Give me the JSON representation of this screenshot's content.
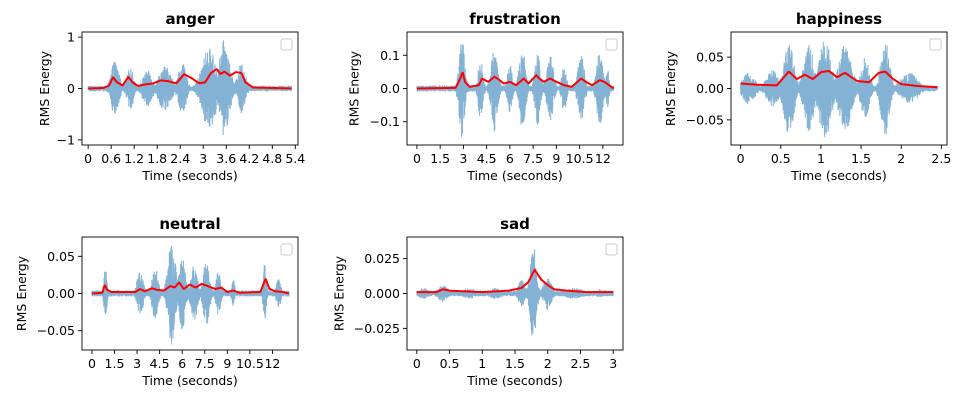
{
  "chart_data": [
    {
      "type": "line",
      "title": "anger",
      "xlabel": "Time (seconds)",
      "ylabel": "RMS Energy",
      "xlim": [
        -0.16,
        5.47
      ],
      "ylim": [
        -1.1,
        1.1
      ],
      "xticks": [
        0,
        0.6,
        1.2,
        1.8,
        2.4,
        3,
        3.6,
        4.2,
        4.8,
        5.4
      ],
      "xtick_labels": [
        "0",
        "0.6",
        "1.2",
        "1.8",
        "2.4",
        "3",
        "3.6",
        "4.2",
        "4.8",
        "5.4"
      ],
      "yticks": [
        -1,
        0,
        1
      ],
      "ytick_labels": [
        "−1",
        "0",
        "1"
      ],
      "duration": 5.3,
      "wave_peak": 0.95,
      "bursts": [
        [
          0.7,
          0.2,
          0.55
        ],
        [
          1.1,
          0.18,
          0.4
        ],
        [
          1.55,
          0.25,
          0.35
        ],
        [
          2.0,
          0.3,
          0.45
        ],
        [
          2.45,
          0.2,
          0.5
        ],
        [
          3.15,
          0.35,
          0.8
        ],
        [
          3.55,
          0.25,
          0.95
        ],
        [
          4.0,
          0.2,
          0.5
        ]
      ],
      "series": [
        {
          "name": "waveform",
          "color": "#6fa4cc"
        },
        {
          "name": "RMS",
          "color": "#ff0000",
          "x": [
            0,
            0.4,
            0.55,
            0.65,
            0.75,
            0.9,
            1.05,
            1.15,
            1.3,
            1.5,
            1.7,
            1.9,
            2.1,
            2.3,
            2.5,
            2.7,
            2.9,
            3.05,
            3.2,
            3.35,
            3.45,
            3.55,
            3.7,
            3.85,
            4.0,
            4.1,
            4.3,
            5.3
          ],
          "y": [
            0,
            0.01,
            0.06,
            0.22,
            0.12,
            0.06,
            0.23,
            0.12,
            0.05,
            0.08,
            0.1,
            0.16,
            0.14,
            0.1,
            0.28,
            0.2,
            0.1,
            0.12,
            0.3,
            0.38,
            0.28,
            0.33,
            0.25,
            0.32,
            0.3,
            0.12,
            0.02,
            0
          ]
        }
      ],
      "legend": "upper right, empty"
    },
    {
      "type": "line",
      "title": "frustration",
      "xlabel": "Time (seconds)",
      "ylabel": "RMS Energy",
      "xlim": [
        -0.64,
        13.3
      ],
      "ylim": [
        -0.17,
        0.17
      ],
      "xticks": [
        0,
        1.5,
        3,
        4.5,
        6,
        7.5,
        9,
        10.5,
        12
      ],
      "xtick_labels": [
        "0",
        "1.5",
        "3",
        "4.5",
        "6",
        "7.5",
        "9",
        "10.5",
        "12"
      ],
      "yticks": [
        -0.1,
        0,
        0.1
      ],
      "ytick_labels": [
        "−0.1",
        "0.0",
        "0.1"
      ],
      "duration": 12.7,
      "wave_peak": 0.155,
      "bursts": [
        [
          2.9,
          0.35,
          0.155
        ],
        [
          4.1,
          0.3,
          0.09
        ],
        [
          5.0,
          0.4,
          0.13
        ],
        [
          6.0,
          0.3,
          0.08
        ],
        [
          6.8,
          0.4,
          0.12
        ],
        [
          7.8,
          0.35,
          0.11
        ],
        [
          8.6,
          0.4,
          0.1
        ],
        [
          9.5,
          0.3,
          0.07
        ],
        [
          10.6,
          0.4,
          0.1
        ],
        [
          11.8,
          0.4,
          0.11
        ],
        [
          12.3,
          0.2,
          0.06
        ]
      ],
      "series": [
        {
          "name": "waveform",
          "color": "#6fa4cc"
        },
        {
          "name": "RMS",
          "color": "#ff0000",
          "x": [
            0,
            2.5,
            2.8,
            2.95,
            3.1,
            3.4,
            4.0,
            4.2,
            4.6,
            5.0,
            5.2,
            5.6,
            6.0,
            6.4,
            6.9,
            7.2,
            7.7,
            7.9,
            8.2,
            8.6,
            9.0,
            9.5,
            10.0,
            10.6,
            10.9,
            11.3,
            11.8,
            12.1,
            12.7
          ],
          "y": [
            0,
            0.002,
            0.03,
            0.05,
            0.02,
            0.005,
            0.01,
            0.03,
            0.02,
            0.035,
            0.03,
            0.015,
            0.02,
            0.01,
            0.03,
            0.015,
            0.04,
            0.03,
            0.02,
            0.03,
            0.02,
            0.01,
            0.005,
            0.03,
            0.02,
            0.01,
            0.025,
            0.02,
            0
          ]
        }
      ],
      "legend": "upper right, empty"
    },
    {
      "type": "line",
      "title": "happiness",
      "xlabel": "Time (seconds)",
      "ylabel": "RMS Energy",
      "xlim": [
        -0.12,
        2.57
      ],
      "ylim": [
        -0.09,
        0.09
      ],
      "xticks": [
        0,
        0.5,
        1,
        1.5,
        2,
        2.5
      ],
      "xtick_labels": [
        "0",
        "0.5",
        "1",
        "1.5",
        "2",
        "2.5"
      ],
      "yticks": [
        -0.05,
        0,
        0.05
      ],
      "ytick_labels": [
        "−0.05",
        "0.00",
        "0.05"
      ],
      "duration": 2.45,
      "wave_peak": 0.08,
      "bursts": [
        [
          0.1,
          0.15,
          0.025
        ],
        [
          0.4,
          0.15,
          0.03
        ],
        [
          0.6,
          0.12,
          0.075
        ],
        [
          0.85,
          0.12,
          0.07
        ],
        [
          1.05,
          0.15,
          0.08
        ],
        [
          1.3,
          0.15,
          0.07
        ],
        [
          1.55,
          0.1,
          0.05
        ],
        [
          1.8,
          0.1,
          0.08
        ],
        [
          2.1,
          0.2,
          0.025
        ]
      ],
      "series": [
        {
          "name": "waveform",
          "color": "#6fa4cc"
        },
        {
          "name": "RMS",
          "color": "#ff0000",
          "x": [
            0,
            0.2,
            0.45,
            0.6,
            0.7,
            0.8,
            0.9,
            1.0,
            1.1,
            1.2,
            1.3,
            1.45,
            1.6,
            1.72,
            1.8,
            1.9,
            2.0,
            2.2,
            2.45
          ],
          "y": [
            0.008,
            0.006,
            0.005,
            0.027,
            0.015,
            0.022,
            0.015,
            0.026,
            0.028,
            0.018,
            0.025,
            0.012,
            0.01,
            0.025,
            0.027,
            0.015,
            0.007,
            0.004,
            0.002
          ]
        }
      ],
      "legend": "upper right, empty"
    },
    {
      "type": "line",
      "title": "neutral",
      "xlabel": "Time (seconds)",
      "ylabel": "RMS Energy",
      "xlim": [
        -0.66,
        13.7
      ],
      "ylim": [
        -0.076,
        0.076
      ],
      "xticks": [
        0,
        1.5,
        3,
        4.5,
        6,
        7.5,
        9,
        10.5,
        12
      ],
      "xtick_labels": [
        "0",
        "1.5",
        "3",
        "4.5",
        "6",
        "7.5",
        "9",
        "10.5",
        "12"
      ],
      "yticks": [
        -0.05,
        0,
        0.05
      ],
      "ytick_labels": [
        "−0.05",
        "0.00",
        "0.05"
      ],
      "duration": 13.1,
      "wave_peak": 0.07,
      "bursts": [
        [
          0.9,
          0.2,
          0.035
        ],
        [
          3.2,
          0.4,
          0.03
        ],
        [
          4.2,
          0.4,
          0.035
        ],
        [
          5.3,
          0.5,
          0.07
        ],
        [
          6.0,
          0.4,
          0.05
        ],
        [
          6.8,
          0.4,
          0.04
        ],
        [
          7.6,
          0.4,
          0.045
        ],
        [
          8.4,
          0.3,
          0.03
        ],
        [
          9.4,
          0.2,
          0.02
        ],
        [
          11.5,
          0.2,
          0.045
        ],
        [
          12.4,
          0.3,
          0.02
        ]
      ],
      "series": [
        {
          "name": "waveform",
          "color": "#6fa4cc"
        },
        {
          "name": "RMS",
          "color": "#ff0000",
          "x": [
            0,
            0.7,
            0.85,
            1.0,
            1.3,
            2.9,
            3.2,
            3.5,
            4.0,
            4.3,
            4.8,
            5.2,
            5.5,
            5.8,
            6.1,
            6.5,
            6.9,
            7.3,
            7.7,
            8.2,
            8.6,
            9.0,
            9.4,
            9.8,
            11.2,
            11.55,
            11.8,
            12.2,
            12.7,
            13.1
          ],
          "y": [
            0,
            0.001,
            0.012,
            0.005,
            0.002,
            0.002,
            0.006,
            0.003,
            0.007,
            0.005,
            0.004,
            0.01,
            0.008,
            0.015,
            0.006,
            0.012,
            0.008,
            0.013,
            0.01,
            0.006,
            0.008,
            0.002,
            0.004,
            0.001,
            0.002,
            0.02,
            0.006,
            0.003,
            0.002,
            0
          ]
        }
      ],
      "legend": "upper right, empty"
    },
    {
      "type": "line",
      "title": "sad",
      "xlabel": "Time (seconds)",
      "ylabel": "RMS Energy",
      "xlim": [
        -0.15,
        3.15
      ],
      "ylim": [
        -0.0405,
        0.0405
      ],
      "xticks": [
        0,
        0.5,
        1,
        1.5,
        2,
        2.5,
        3
      ],
      "xtick_labels": [
        "0",
        "0.5",
        "1",
        "1.5",
        "2",
        "2.5",
        "3"
      ],
      "yticks": [
        -0.025,
        0,
        0.025
      ],
      "ytick_labels": [
        "−0.025",
        "0.000",
        "0.025"
      ],
      "duration": 3.0,
      "wave_peak": 0.035,
      "bursts": [
        [
          0.1,
          0.15,
          0.004
        ],
        [
          0.4,
          0.15,
          0.006
        ],
        [
          0.8,
          0.2,
          0.004
        ],
        [
          1.2,
          0.2,
          0.004
        ],
        [
          1.6,
          0.1,
          0.01
        ],
        [
          1.78,
          0.09,
          0.035
        ],
        [
          2.0,
          0.12,
          0.012
        ],
        [
          2.4,
          0.3,
          0.004
        ],
        [
          2.8,
          0.2,
          0.003
        ]
      ],
      "series": [
        {
          "name": "waveform",
          "color": "#6fa4cc"
        },
        {
          "name": "RMS",
          "color": "#ff0000",
          "x": [
            0,
            0.3,
            0.4,
            0.5,
            1.0,
            1.4,
            1.6,
            1.7,
            1.8,
            1.9,
            2.0,
            2.1,
            2.3,
            2.6,
            3.0
          ],
          "y": [
            0.001,
            0.001,
            0.003,
            0.002,
            0.001,
            0.002,
            0.004,
            0.008,
            0.017,
            0.01,
            0.006,
            0.003,
            0.002,
            0.001,
            0.001
          ]
        }
      ],
      "legend": "upper right, empty"
    }
  ]
}
